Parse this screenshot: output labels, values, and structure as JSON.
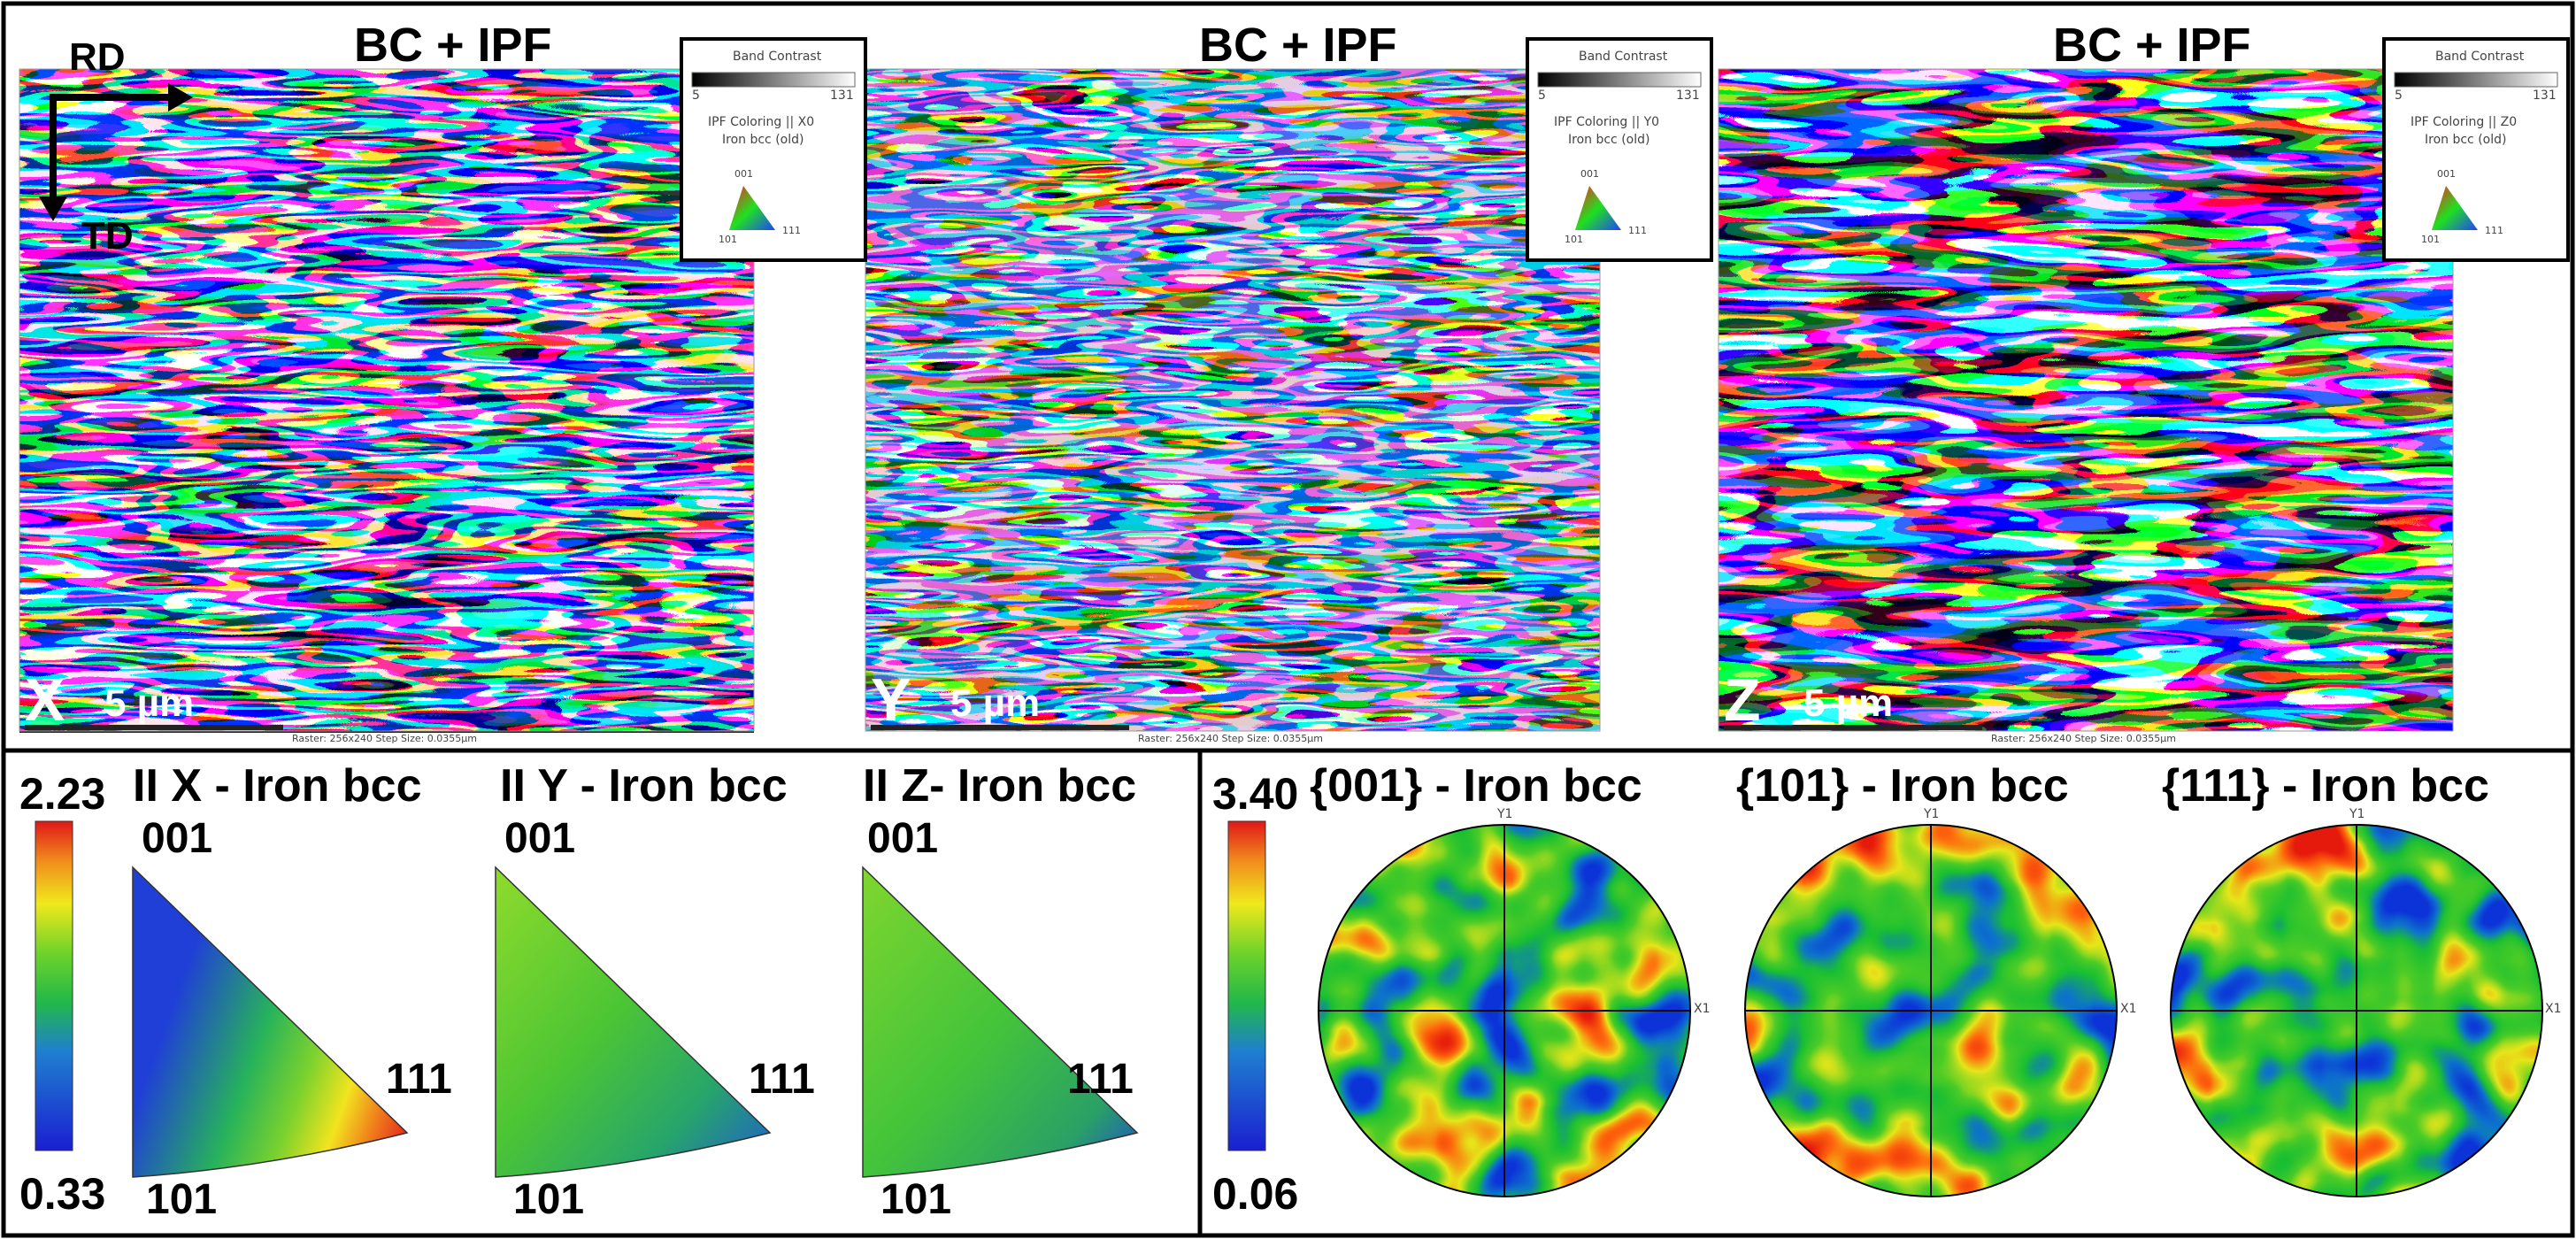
{
  "figure": {
    "top_panels": [
      {
        "id": "x",
        "title": "BC + IPF",
        "corner_label": "X",
        "scale_text": "5 µm",
        "status_text": "Raster: 256x240  Step Size: 0.0355µm",
        "legend": {
          "heading": "Band Contrast",
          "bc_min": "5",
          "bc_max": "131",
          "ipf_line": "IPF Coloring || X0",
          "phase": "Iron bcc (old)",
          "t001": "001",
          "t101": "101",
          "t111": "111"
        }
      },
      {
        "id": "y",
        "title": "BC + IPF",
        "corner_label": "Y",
        "scale_text": "5 µm",
        "status_text": "Raster: 256x240  Step Size: 0.0355µm",
        "legend": {
          "heading": "Band Contrast",
          "bc_min": "5",
          "bc_max": "131",
          "ipf_line": "IPF Coloring || Y0",
          "phase": "Iron bcc (old)",
          "t001": "001",
          "t101": "101",
          "t111": "111"
        }
      },
      {
        "id": "z",
        "title": "BC + IPF",
        "corner_label": "Z",
        "scale_text": "5 µm",
        "status_text": "Raster: 256x240  Step Size: 0.0355µm",
        "legend": {
          "heading": "Band Contrast",
          "bc_min": "5",
          "bc_max": "131",
          "ipf_line": "IPF Coloring || Z0",
          "phase": "Iron bcc (old)",
          "t001": "001",
          "t101": "101",
          "t111": "111"
        }
      }
    ],
    "axes": {
      "rd": "RD",
      "td": "TD"
    },
    "ipf_section": {
      "scale_max": "2.23",
      "scale_min": "0.33",
      "triangles": [
        {
          "title": "II X - Iron bcc",
          "t001": "001",
          "t101": "101",
          "t111": "111"
        },
        {
          "title": "II Y - Iron bcc",
          "t001": "001",
          "t101": "101",
          "t111": "111"
        },
        {
          "title": "II Z- Iron bcc",
          "t001": "001",
          "t101": "101",
          "t111": "111"
        }
      ]
    },
    "pf_section": {
      "scale_max": "3.40",
      "scale_min": "0.06",
      "poles": [
        {
          "title": "{001} - Iron bcc",
          "y_axis": "Y1",
          "x_axis": "X1"
        },
        {
          "title": "{101} - Iron bcc",
          "y_axis": "Y1",
          "x_axis": "X1"
        },
        {
          "title": "{111} - Iron bcc",
          "y_axis": "Y1",
          "x_axis": "X1"
        }
      ]
    },
    "colors": {
      "ipf_red": "#ff2020",
      "ipf_green": "#20e020",
      "ipf_blue": "#2040ff",
      "jet_low": "#1a2bd6",
      "jet_mid": "#22c02a",
      "jet_high": "#e01c1c"
    }
  }
}
